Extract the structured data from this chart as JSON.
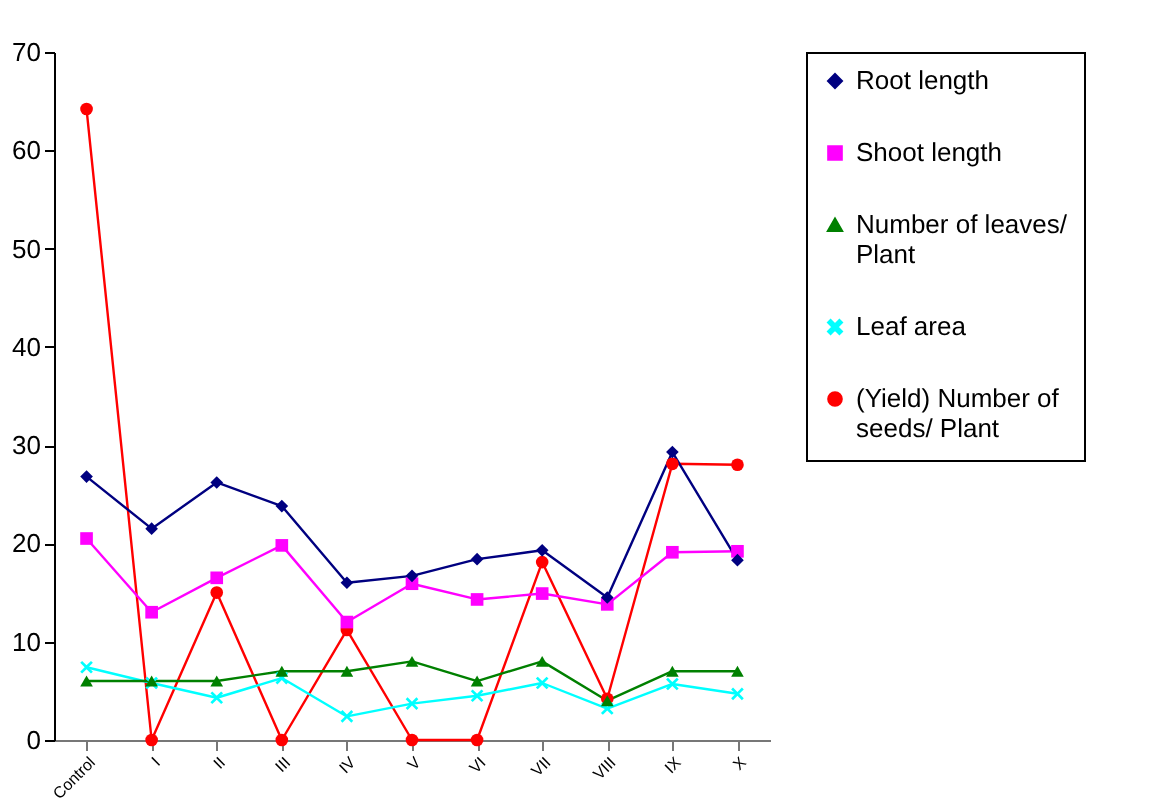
{
  "chart_data": {
    "type": "line",
    "categories": [
      "Control",
      "I",
      "II",
      "III",
      "IV",
      "V",
      "VI",
      "VII",
      "VIII",
      "IX",
      "X"
    ],
    "series": [
      {
        "name": "Root length",
        "color": "#000080",
        "marker": "diamond",
        "values": [
          26.8,
          21.5,
          26.2,
          23.8,
          16,
          16.7,
          18.4,
          19.3,
          14.5,
          29.3,
          18.3
        ]
      },
      {
        "name": "Shoot length",
        "color": "#ff00ff",
        "marker": "square",
        "values": [
          20.5,
          13,
          16.5,
          19.8,
          12,
          15.9,
          14.3,
          14.9,
          13.8,
          19.1,
          19.2
        ]
      },
      {
        "name": "Number of leaves/ Plant",
        "color": "#008000",
        "marker": "triangle",
        "values": [
          6,
          6,
          6,
          7,
          7,
          8,
          6,
          8,
          4,
          7,
          7
        ]
      },
      {
        "name": "Leaf area",
        "color": "#00ffff",
        "marker": "cross",
        "values": [
          7.4,
          5.8,
          4.3,
          6.3,
          2.4,
          3.7,
          4.5,
          5.8,
          3.2,
          5.7,
          4.7
        ]
      },
      {
        "name": "(Yield) Number of seeds/ Plant",
        "color": "#ff0000",
        "marker": "circle",
        "values": [
          64.2,
          0,
          15,
          0,
          11.2,
          0,
          0,
          18.1,
          4.2,
          28.1,
          28
        ]
      }
    ],
    "ylim": [
      0,
      70
    ],
    "yticks": [
      0,
      10,
      20,
      30,
      40,
      50,
      60,
      70
    ],
    "grid": false,
    "legend": "right"
  }
}
